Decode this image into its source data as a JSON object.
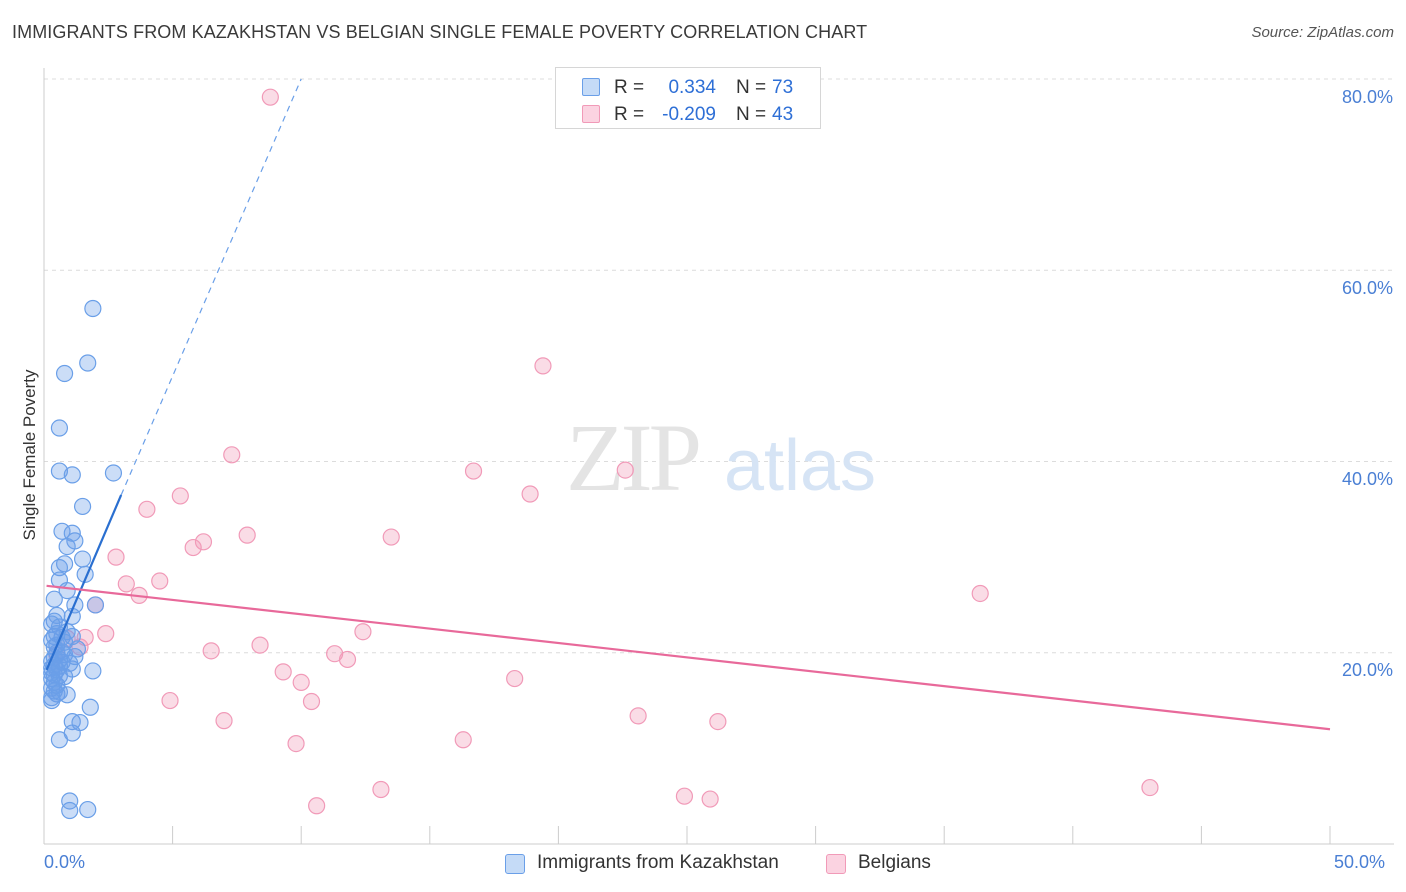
{
  "title": "IMMIGRANTS FROM KAZAKHSTAN VS BELGIAN SINGLE FEMALE POVERTY CORRELATION CHART",
  "source": "Source: ZipAtlas.com",
  "watermark": {
    "zip": "ZIP",
    "atlas": "atlas"
  },
  "colors": {
    "blue": "#6a9fe8",
    "pink": "#f19ab8",
    "blue_line": "#2a6fd0",
    "pink_line": "#e8699a"
  },
  "legend": {
    "rows": [
      {
        "r_label": "R =",
        "r_value": "0.334",
        "n_label": "N =",
        "n_value": "73"
      },
      {
        "r_label": "R =",
        "r_value": "-0.209",
        "n_label": "N =",
        "n_value": "43"
      }
    ]
  },
  "chart_data": {
    "type": "scatter",
    "title": "IMMIGRANTS FROM KAZAKHSTAN VS BELGIAN SINGLE FEMALE POVERTY CORRELATION CHART",
    "xlabel": "",
    "ylabel": "Single Female Poverty",
    "xlim": [
      0,
      50
    ],
    "ylim": [
      0,
      80
    ],
    "x_tick_labels": [
      "0.0%",
      "50.0%"
    ],
    "y_tick_labels": [
      "20.0%",
      "40.0%",
      "60.0%",
      "80.0%"
    ],
    "y_ticks": [
      20,
      40,
      60,
      80
    ],
    "series": [
      {
        "name": "Immigrants from Kazakhstan",
        "R": 0.334,
        "N": 73,
        "trend": {
          "x": [
            0.1,
            3.0
          ],
          "y": [
            18.2,
            36.5
          ],
          "dashed_to": [
            10.0,
            80.0
          ]
        },
        "points": [
          [
            1.9,
            56.0
          ],
          [
            1.7,
            50.3
          ],
          [
            0.8,
            49.2
          ],
          [
            0.6,
            43.5
          ],
          [
            2.7,
            38.8
          ],
          [
            0.6,
            39.0
          ],
          [
            1.1,
            38.6
          ],
          [
            1.5,
            35.3
          ],
          [
            0.7,
            32.7
          ],
          [
            1.1,
            32.5
          ],
          [
            1.2,
            31.7
          ],
          [
            0.9,
            31.1
          ],
          [
            1.5,
            29.8
          ],
          [
            0.8,
            29.3
          ],
          [
            0.6,
            28.9
          ],
          [
            1.6,
            28.2
          ],
          [
            0.6,
            27.6
          ],
          [
            0.9,
            26.5
          ],
          [
            0.4,
            25.6
          ],
          [
            1.2,
            25.0
          ],
          [
            2.0,
            25.0
          ],
          [
            0.5,
            23.9
          ],
          [
            1.1,
            23.8
          ],
          [
            0.4,
            23.3
          ],
          [
            0.3,
            23.0
          ],
          [
            0.6,
            22.7
          ],
          [
            0.9,
            22.2
          ],
          [
            1.1,
            21.7
          ],
          [
            0.4,
            21.7
          ],
          [
            0.7,
            21.6
          ],
          [
            0.3,
            21.3
          ],
          [
            0.8,
            21.1
          ],
          [
            0.5,
            20.8
          ],
          [
            1.3,
            20.4
          ],
          [
            0.5,
            20.0
          ],
          [
            0.8,
            19.8
          ],
          [
            0.4,
            19.5
          ],
          [
            0.6,
            19.3
          ],
          [
            0.3,
            19.1
          ],
          [
            0.7,
            19.0
          ],
          [
            1.0,
            18.9
          ],
          [
            0.4,
            18.7
          ],
          [
            0.6,
            18.6
          ],
          [
            0.3,
            18.4
          ],
          [
            1.1,
            18.3
          ],
          [
            0.5,
            18.2
          ],
          [
            1.9,
            18.1
          ],
          [
            0.3,
            17.9
          ],
          [
            0.4,
            17.7
          ],
          [
            0.6,
            17.6
          ],
          [
            0.3,
            17.3
          ],
          [
            0.4,
            16.9
          ],
          [
            0.5,
            16.6
          ],
          [
            0.3,
            16.3
          ],
          [
            0.4,
            16.0
          ],
          [
            0.6,
            15.9
          ],
          [
            0.5,
            15.7
          ],
          [
            0.9,
            15.6
          ],
          [
            0.3,
            15.3
          ],
          [
            0.3,
            15.0
          ],
          [
            1.8,
            14.3
          ],
          [
            1.1,
            12.8
          ],
          [
            1.4,
            12.7
          ],
          [
            1.1,
            11.6
          ],
          [
            0.6,
            10.9
          ],
          [
            1.0,
            4.5
          ],
          [
            1.0,
            3.5
          ],
          [
            1.7,
            3.6
          ],
          [
            0.7,
            20.1
          ],
          [
            0.5,
            22.0
          ],
          [
            0.8,
            17.5
          ],
          [
            1.2,
            19.6
          ],
          [
            0.4,
            20.6
          ]
        ]
      },
      {
        "name": "Belgians",
        "R": -0.209,
        "N": 43,
        "trend": {
          "x": [
            0.1,
            50.0
          ],
          "y": [
            27.0,
            12.0
          ]
        },
        "points": [
          [
            8.8,
            78.1
          ],
          [
            19.4,
            50.0
          ],
          [
            7.3,
            40.7
          ],
          [
            16.7,
            39.0
          ],
          [
            22.6,
            39.1
          ],
          [
            18.9,
            36.6
          ],
          [
            5.3,
            36.4
          ],
          [
            4.0,
            35.0
          ],
          [
            13.5,
            32.1
          ],
          [
            7.9,
            32.3
          ],
          [
            6.2,
            31.6
          ],
          [
            5.8,
            31.0
          ],
          [
            2.8,
            30.0
          ],
          [
            4.5,
            27.5
          ],
          [
            3.2,
            27.2
          ],
          [
            3.7,
            26.0
          ],
          [
            36.4,
            26.2
          ],
          [
            2.0,
            25.0
          ],
          [
            12.4,
            22.2
          ],
          [
            2.4,
            22.0
          ],
          [
            8.4,
            20.8
          ],
          [
            1.4,
            20.6
          ],
          [
            6.5,
            20.2
          ],
          [
            11.3,
            19.9
          ],
          [
            11.8,
            19.3
          ],
          [
            9.3,
            18.0
          ],
          [
            18.3,
            17.3
          ],
          [
            10.0,
            16.9
          ],
          [
            10.4,
            14.9
          ],
          [
            4.9,
            15.0
          ],
          [
            23.1,
            13.4
          ],
          [
            26.2,
            12.8
          ],
          [
            7.0,
            12.9
          ],
          [
            9.8,
            10.5
          ],
          [
            16.3,
            10.9
          ],
          [
            13.1,
            5.7
          ],
          [
            24.9,
            5.0
          ],
          [
            25.9,
            4.7
          ],
          [
            10.6,
            4.0
          ],
          [
            43.0,
            5.9
          ],
          [
            0.5,
            19.8
          ],
          [
            0.9,
            21.5
          ],
          [
            1.6,
            21.6
          ]
        ]
      }
    ],
    "legend": [
      "Immigrants from Kazakhstan",
      "Belgians"
    ]
  }
}
